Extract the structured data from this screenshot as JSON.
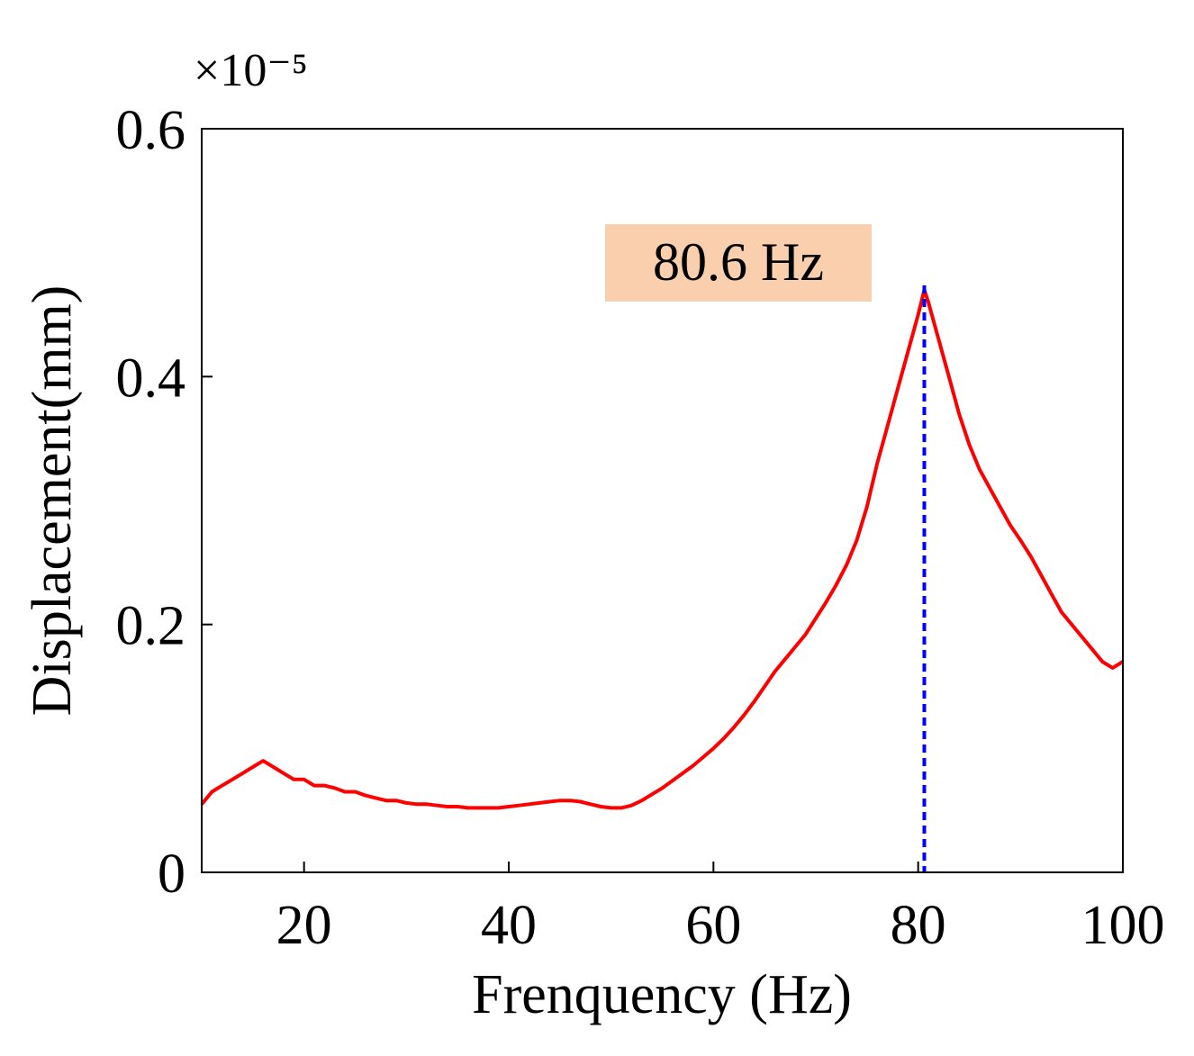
{
  "chart_data": {
    "type": "line",
    "title": "",
    "xlabel": "Frenquency (Hz)",
    "ylabel": "Displacement(mm)",
    "y_scale_note": "×10⁻⁵",
    "xlim": [
      10,
      100
    ],
    "ylim": [
      0,
      0.6
    ],
    "xticks": [
      20,
      40,
      60,
      80,
      100
    ],
    "yticks": [
      0,
      0.2,
      0.4,
      0.6
    ],
    "ytick_labels": [
      "0",
      "0.2",
      "0.4",
      "0.6"
    ],
    "grid": false,
    "series": [
      {
        "name": "Displacement",
        "color": "#ff0000",
        "x": [
          10,
          11,
          12,
          13,
          14,
          15,
          16,
          17,
          18,
          19,
          20,
          21,
          22,
          23,
          24,
          25,
          26,
          27,
          28,
          29,
          30,
          31,
          32,
          33,
          34,
          35,
          36,
          37,
          38,
          39,
          40,
          41,
          42,
          43,
          44,
          45,
          46,
          47,
          48,
          49,
          50,
          51,
          52,
          53,
          54,
          55,
          56,
          57,
          58,
          59,
          60,
          61,
          62,
          63,
          64,
          65,
          66,
          67,
          68,
          69,
          70,
          71,
          72,
          73,
          74,
          75,
          76,
          77,
          78,
          79,
          80,
          80.6,
          81,
          82,
          83,
          84,
          85,
          86,
          87,
          88,
          89,
          90,
          91,
          92,
          93,
          94,
          95,
          96,
          97,
          98,
          99,
          100
        ],
        "y": [
          0.055,
          0.065,
          0.07,
          0.075,
          0.08,
          0.085,
          0.09,
          0.085,
          0.08,
          0.075,
          0.075,
          0.07,
          0.07,
          0.068,
          0.065,
          0.065,
          0.062,
          0.06,
          0.058,
          0.058,
          0.056,
          0.055,
          0.055,
          0.054,
          0.053,
          0.053,
          0.052,
          0.052,
          0.052,
          0.052,
          0.053,
          0.054,
          0.055,
          0.056,
          0.057,
          0.058,
          0.058,
          0.057,
          0.055,
          0.053,
          0.052,
          0.052,
          0.054,
          0.058,
          0.063,
          0.068,
          0.074,
          0.08,
          0.086,
          0.093,
          0.1,
          0.108,
          0.117,
          0.127,
          0.138,
          0.15,
          0.162,
          0.172,
          0.182,
          0.192,
          0.205,
          0.218,
          0.232,
          0.248,
          0.268,
          0.295,
          0.33,
          0.36,
          0.39,
          0.42,
          0.45,
          0.47,
          0.46,
          0.43,
          0.4,
          0.37,
          0.345,
          0.325,
          0.31,
          0.295,
          0.28,
          0.268,
          0.255,
          0.24,
          0.225,
          0.21,
          0.2,
          0.19,
          0.18,
          0.17,
          0.165,
          0.17
        ]
      }
    ],
    "peak_marker": {
      "x": 80.6,
      "label": "80.6 Hz",
      "line_color": "#0000ff",
      "label_bg": "#f9cfae"
    }
  }
}
